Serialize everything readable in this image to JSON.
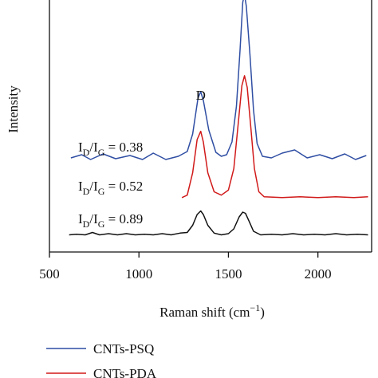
{
  "chart_data": {
    "type": "line",
    "xlabel": "Raman shift (cm",
    "xlabel_sup": "−1",
    "xlabel_close": ")",
    "ylabel": "Intensity",
    "xlim": [
      500,
      2300
    ],
    "xticks": [
      500,
      1000,
      1500,
      2000
    ],
    "y_ticks_shown": false,
    "grid": false,
    "peak_labels": [
      {
        "text": "D",
        "x": 1350
      }
    ],
    "series": [
      {
        "name": "CNTs-PSQ",
        "color": "#2f4ea3",
        "ratio_label": "0.38",
        "points": [
          [
            620,
            0.1
          ],
          [
            680,
            0.14
          ],
          [
            730,
            0.08
          ],
          [
            800,
            0.15
          ],
          [
            870,
            0.09
          ],
          [
            950,
            0.13
          ],
          [
            1020,
            0.08
          ],
          [
            1080,
            0.16
          ],
          [
            1150,
            0.08
          ],
          [
            1220,
            0.12
          ],
          [
            1270,
            0.18
          ],
          [
            1300,
            0.4
          ],
          [
            1330,
            0.85
          ],
          [
            1345,
            0.93
          ],
          [
            1360,
            0.82
          ],
          [
            1390,
            0.45
          ],
          [
            1430,
            0.17
          ],
          [
            1460,
            0.12
          ],
          [
            1490,
            0.14
          ],
          [
            1520,
            0.3
          ],
          [
            1545,
            0.75
          ],
          [
            1565,
            1.45
          ],
          [
            1580,
            2.05
          ],
          [
            1590,
            2.15
          ],
          [
            1600,
            2.0
          ],
          [
            1620,
            1.4
          ],
          [
            1640,
            0.7
          ],
          [
            1660,
            0.28
          ],
          [
            1690,
            0.12
          ],
          [
            1740,
            0.1
          ],
          [
            1800,
            0.16
          ],
          [
            1870,
            0.2
          ],
          [
            1940,
            0.1
          ],
          [
            2010,
            0.14
          ],
          [
            2080,
            0.09
          ],
          [
            2150,
            0.15
          ],
          [
            2210,
            0.08
          ],
          [
            2270,
            0.13
          ]
        ]
      },
      {
        "name": "CNTs-PDA",
        "color": "#d11a1a",
        "ratio_label": "0.52",
        "points": [
          [
            1240,
            0.05
          ],
          [
            1270,
            0.08
          ],
          [
            1300,
            0.35
          ],
          [
            1325,
            0.75
          ],
          [
            1345,
            0.85
          ],
          [
            1360,
            0.72
          ],
          [
            1385,
            0.35
          ],
          [
            1420,
            0.12
          ],
          [
            1460,
            0.08
          ],
          [
            1500,
            0.14
          ],
          [
            1530,
            0.4
          ],
          [
            1555,
            0.95
          ],
          [
            1575,
            1.4
          ],
          [
            1590,
            1.52
          ],
          [
            1605,
            1.38
          ],
          [
            1625,
            0.9
          ],
          [
            1645,
            0.4
          ],
          [
            1670,
            0.12
          ],
          [
            1700,
            0.06
          ],
          [
            1800,
            0.05
          ],
          [
            1900,
            0.06
          ],
          [
            2000,
            0.05
          ],
          [
            2100,
            0.06
          ],
          [
            2200,
            0.05
          ],
          [
            2280,
            0.06
          ]
        ]
      },
      {
        "name": "",
        "color": "#111111",
        "ratio_label": "0.89",
        "points": [
          [
            610,
            0.02
          ],
          [
            650,
            0.03
          ],
          [
            700,
            0.02
          ],
          [
            740,
            0.06
          ],
          [
            780,
            0.02
          ],
          [
            830,
            0.04
          ],
          [
            880,
            0.02
          ],
          [
            930,
            0.04
          ],
          [
            980,
            0.02
          ],
          [
            1030,
            0.03
          ],
          [
            1080,
            0.02
          ],
          [
            1130,
            0.04
          ],
          [
            1180,
            0.02
          ],
          [
            1230,
            0.05
          ],
          [
            1270,
            0.06
          ],
          [
            1300,
            0.18
          ],
          [
            1325,
            0.36
          ],
          [
            1345,
            0.42
          ],
          [
            1360,
            0.36
          ],
          [
            1385,
            0.18
          ],
          [
            1420,
            0.05
          ],
          [
            1460,
            0.02
          ],
          [
            1500,
            0.04
          ],
          [
            1530,
            0.12
          ],
          [
            1560,
            0.32
          ],
          [
            1580,
            0.4
          ],
          [
            1595,
            0.38
          ],
          [
            1615,
            0.25
          ],
          [
            1640,
            0.08
          ],
          [
            1680,
            0.02
          ],
          [
            1740,
            0.03
          ],
          [
            1800,
            0.02
          ],
          [
            1860,
            0.04
          ],
          [
            1920,
            0.02
          ],
          [
            1980,
            0.03
          ],
          [
            2040,
            0.02
          ],
          [
            2100,
            0.04
          ],
          [
            2160,
            0.02
          ],
          [
            2220,
            0.03
          ],
          [
            2280,
            0.02
          ]
        ]
      }
    ],
    "ratio_label_prefix": "I",
    "ratio_sub_num": "D",
    "ratio_sub_den": "G",
    "ratio_slash": "/",
    "ratio_eq": " = "
  },
  "legend": {
    "items": [
      {
        "label": "CNTs-PSQ",
        "color": "#2f4ea3"
      },
      {
        "label": "CNTs-PDA",
        "color": "#d11a1a"
      }
    ]
  }
}
